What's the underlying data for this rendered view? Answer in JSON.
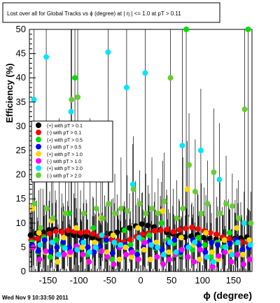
{
  "chart_data": {
    "type": "scatter",
    "title": "Lost over all for Global Tracks vs ϕ (degree) at | η | <= 1.0 at pT > 0.11",
    "xlabel": "ϕ (degree)",
    "ylabel": "Efficiency (%)",
    "xlim": [
      -180,
      180
    ],
    "ylim": [
      0,
      50
    ],
    "x_ticks": [
      -150,
      -100,
      -50,
      0,
      50,
      100,
      150
    ],
    "y_ticks": [
      0,
      5,
      10,
      15,
      20,
      25,
      30,
      35,
      40,
      45,
      50
    ],
    "grid": false,
    "legend_position": "upper-left",
    "timestamp": "Wed Nov  9 10:33:50 2011",
    "series": [
      {
        "name": "(+) with pT > 0.1",
        "color": "#000000",
        "marker": "circle",
        "points": [
          [
            -175,
            7.5
          ],
          [
            -165,
            7.9
          ],
          [
            -155,
            8.2
          ],
          [
            -145,
            8.6
          ],
          [
            -135,
            8.7
          ],
          [
            -125,
            8.3
          ],
          [
            -115,
            7.8
          ],
          [
            -105,
            7.5
          ],
          [
            -95,
            7.4
          ],
          [
            -85,
            7.3
          ],
          [
            -75,
            7.0
          ],
          [
            -65,
            6.8
          ],
          [
            -55,
            7.2
          ],
          [
            -45,
            7.8
          ],
          [
            -35,
            8.1
          ],
          [
            -25,
            8.6
          ],
          [
            -15,
            9.0
          ],
          [
            -5,
            9.4
          ],
          [
            5,
            9.8
          ],
          [
            15,
            9.5
          ],
          [
            25,
            9.2
          ],
          [
            35,
            8.6
          ],
          [
            45,
            8.1
          ],
          [
            55,
            7.8
          ],
          [
            65,
            7.4
          ],
          [
            75,
            7.1
          ],
          [
            85,
            7.3
          ],
          [
            95,
            7.6
          ],
          [
            105,
            7.0
          ],
          [
            115,
            6.8
          ],
          [
            125,
            6.7
          ],
          [
            135,
            6.9
          ],
          [
            145,
            6.6
          ],
          [
            155,
            6.8
          ],
          [
            165,
            6.9
          ],
          [
            175,
            7.1
          ]
        ]
      },
      {
        "name": "(-) with pT > 0.1",
        "color": "#ff0000",
        "marker": "circle",
        "points": [
          [
            -175,
            6.5
          ],
          [
            -165,
            6.8
          ],
          [
            -155,
            7.2
          ],
          [
            -145,
            7.8
          ],
          [
            -135,
            8.3
          ],
          [
            -125,
            8.2
          ],
          [
            -115,
            8.5
          ],
          [
            -105,
            8.3
          ],
          [
            -95,
            8.0
          ],
          [
            -85,
            8.2
          ],
          [
            -75,
            7.8
          ],
          [
            -65,
            7.4
          ],
          [
            -55,
            7.0
          ],
          [
            -45,
            6.6
          ],
          [
            -35,
            6.3
          ],
          [
            -25,
            6.1
          ],
          [
            -15,
            6.6
          ],
          [
            -5,
            7.2
          ],
          [
            5,
            7.7
          ],
          [
            15,
            7.9
          ],
          [
            25,
            8.4
          ],
          [
            35,
            8.5
          ],
          [
            45,
            8.7
          ],
          [
            55,
            8.2
          ],
          [
            65,
            8.6
          ],
          [
            75,
            8.9
          ],
          [
            85,
            9.1
          ],
          [
            95,
            8.8
          ],
          [
            105,
            8.4
          ],
          [
            115,
            8.0
          ],
          [
            125,
            7.7
          ],
          [
            135,
            7.1
          ],
          [
            145,
            6.8
          ],
          [
            155,
            6.5
          ],
          [
            165,
            6.1
          ],
          [
            175,
            6.0
          ]
        ]
      },
      {
        "name": "(+) with pT > 0.5",
        "color": "#00dd00",
        "marker": "circle",
        "points": [
          [
            -175,
            6.0
          ],
          [
            -165,
            4.0
          ],
          [
            -155,
            7.0
          ],
          [
            -145,
            3.0
          ],
          [
            -135,
            6.5
          ],
          [
            -125,
            5.5
          ],
          [
            -115,
            12.0
          ],
          [
            -105,
            40.0
          ],
          [
            -95,
            5.0
          ],
          [
            -85,
            3.5
          ],
          [
            -75,
            9.0
          ],
          [
            -65,
            4.5
          ],
          [
            -55,
            6.2
          ],
          [
            -45,
            2.5
          ],
          [
            -35,
            5.2
          ],
          [
            -25,
            8.5
          ],
          [
            -15,
            5.5
          ],
          [
            -5,
            4.0
          ],
          [
            5,
            6.5
          ],
          [
            15,
            7.5
          ],
          [
            25,
            4.8
          ],
          [
            35,
            10.0
          ],
          [
            45,
            6.5
          ],
          [
            55,
            5.8
          ],
          [
            65,
            3.5
          ],
          [
            75,
            50.0
          ],
          [
            85,
            4.5
          ],
          [
            95,
            7.0
          ],
          [
            105,
            5.5
          ],
          [
            115,
            3.0
          ],
          [
            125,
            6.0
          ],
          [
            135,
            5.0
          ],
          [
            145,
            8.0
          ],
          [
            155,
            6.0
          ],
          [
            165,
            4.2
          ],
          [
            175,
            50.0
          ]
        ]
      },
      {
        "name": "(-) with pT > 0.5",
        "color": "#0000ff",
        "marker": "circle",
        "points": [
          [
            -175,
            5.5
          ],
          [
            -165,
            4.2
          ],
          [
            -155,
            6.5
          ],
          [
            -145,
            4.2
          ],
          [
            -135,
            5.0
          ],
          [
            -125,
            6.0
          ],
          [
            -115,
            5.0
          ],
          [
            -105,
            4.5
          ],
          [
            -95,
            6.2
          ],
          [
            -85,
            5.0
          ],
          [
            -75,
            4.0
          ],
          [
            -65,
            5.2
          ],
          [
            -55,
            6.5
          ],
          [
            -45,
            3.8
          ],
          [
            -35,
            5.0
          ],
          [
            -25,
            5.5
          ],
          [
            -15,
            4.5
          ],
          [
            -5,
            3.5
          ],
          [
            5,
            5.0
          ],
          [
            15,
            6.2
          ],
          [
            25,
            5.0
          ],
          [
            35,
            4.5
          ],
          [
            45,
            5.8
          ],
          [
            55,
            6.5
          ],
          [
            65,
            4.0
          ],
          [
            75,
            5.2
          ],
          [
            85,
            6.5
          ],
          [
            95,
            5.5
          ],
          [
            105,
            4.0
          ],
          [
            115,
            6.0
          ],
          [
            125,
            5.5
          ],
          [
            135,
            4.2
          ],
          [
            145,
            5.8
          ],
          [
            155,
            6.5
          ],
          [
            165,
            4.5
          ],
          [
            175,
            5.0
          ]
        ]
      },
      {
        "name": "(+) with pT > 1.0",
        "color": "#ffd700",
        "marker": "circle",
        "points": [
          [
            -175,
            13.0
          ],
          [
            -165,
            8.0
          ],
          [
            -155,
            4.0
          ],
          [
            -145,
            10.5
          ],
          [
            -135,
            2.0
          ],
          [
            -125,
            7.0
          ],
          [
            -115,
            3.5
          ],
          [
            -105,
            9.0
          ],
          [
            -95,
            5.0
          ],
          [
            -85,
            2.0
          ],
          [
            -75,
            6.0
          ],
          [
            -65,
            11.0
          ],
          [
            -55,
            4.0
          ],
          [
            -45,
            7.5
          ],
          [
            -35,
            2.5
          ],
          [
            -25,
            5.0
          ],
          [
            -15,
            3.0
          ],
          [
            -5,
            9.0
          ],
          [
            5,
            4.5
          ],
          [
            15,
            2.5
          ],
          [
            25,
            6.0
          ],
          [
            35,
            12.5
          ],
          [
            45,
            4.0
          ],
          [
            55,
            3.5
          ],
          [
            65,
            7.0
          ],
          [
            75,
            17.0
          ],
          [
            85,
            5.5
          ],
          [
            95,
            2.5
          ],
          [
            105,
            8.0
          ],
          [
            115,
            4.0
          ],
          [
            125,
            2.5
          ],
          [
            135,
            6.5
          ],
          [
            145,
            4.0
          ],
          [
            155,
            9.0
          ],
          [
            165,
            3.5
          ],
          [
            175,
            6.5
          ]
        ]
      },
      {
        "name": "(-) with pT > 1.0",
        "color": "#ff00ff",
        "marker": "circle",
        "points": [
          [
            -175,
            5.0
          ],
          [
            -165,
            2.5
          ],
          [
            -155,
            4.2
          ],
          [
            -145,
            6.0
          ],
          [
            -135,
            3.5
          ],
          [
            -125,
            3.5
          ],
          [
            -115,
            4.0
          ],
          [
            -105,
            5.2
          ],
          [
            -95,
            3.5
          ],
          [
            -85,
            2.0
          ],
          [
            -75,
            5.0
          ],
          [
            -65,
            4.2
          ],
          [
            -55,
            3.0
          ],
          [
            -45,
            1.5
          ],
          [
            -35,
            5.0
          ],
          [
            -25,
            3.5
          ],
          [
            -15,
            4.0
          ],
          [
            -5,
            2.5
          ],
          [
            5,
            6.0
          ],
          [
            15,
            5.5
          ],
          [
            25,
            3.0
          ],
          [
            35,
            1.5
          ],
          [
            45,
            2.5
          ],
          [
            55,
            3.5
          ],
          [
            65,
            4.5
          ],
          [
            75,
            3.0
          ],
          [
            85,
            2.0
          ],
          [
            95,
            4.5
          ],
          [
            105,
            3.0
          ],
          [
            115,
            1.0
          ],
          [
            125,
            3.2
          ],
          [
            135,
            4.0
          ],
          [
            145,
            2.0
          ],
          [
            155,
            3.5
          ],
          [
            165,
            1.5
          ],
          [
            175,
            2.5
          ]
        ]
      },
      {
        "name": "(+) with pT > 2.0",
        "color": "#00e5ff",
        "marker": "circle",
        "points": [
          [
            -175,
            35.5
          ],
          [
            -165,
            5.5
          ],
          [
            -155,
            44.3
          ],
          [
            -145,
            6.0
          ],
          [
            -135,
            3.5
          ],
          [
            -125,
            4.8
          ],
          [
            -115,
            33.0
          ],
          [
            -105,
            4.5
          ],
          [
            -95,
            6.0
          ],
          [
            -85,
            4.0
          ],
          [
            -75,
            5.0
          ],
          [
            -65,
            7.5
          ],
          [
            -55,
            45.3
          ],
          [
            -45,
            6.0
          ],
          [
            -35,
            5.5
          ],
          [
            -25,
            38.0
          ],
          [
            -15,
            18.0
          ],
          [
            -5,
            7.0
          ],
          [
            5,
            41.0
          ],
          [
            15,
            5.5
          ],
          [
            25,
            5.0
          ],
          [
            35,
            3.5
          ],
          [
            45,
            6.0
          ],
          [
            55,
            4.0
          ],
          [
            65,
            26.0
          ],
          [
            75,
            5.0
          ],
          [
            85,
            6.0
          ],
          [
            95,
            25.0
          ],
          [
            105,
            3.0
          ],
          [
            115,
            2.0
          ],
          [
            125,
            19.0
          ],
          [
            135,
            5.0
          ],
          [
            145,
            3.5
          ],
          [
            155,
            6.0
          ],
          [
            165,
            10.0
          ],
          [
            175,
            5.5
          ]
        ]
      },
      {
        "name": "(-) with pT > 2.0",
        "color": "#66cc33",
        "marker": "circle",
        "points": [
          [
            -175,
            14.0
          ],
          [
            -165,
            9.0
          ],
          [
            -155,
            13.0
          ],
          [
            -145,
            11.0
          ],
          [
            -135,
            19.0
          ],
          [
            -125,
            12.0
          ],
          [
            -115,
            35.5
          ],
          [
            -105,
            36.0
          ],
          [
            -95,
            12.0
          ],
          [
            -85,
            19.0
          ],
          [
            -75,
            13.0
          ],
          [
            -65,
            11.0
          ],
          [
            -55,
            14.0
          ],
          [
            -45,
            12.0
          ],
          [
            -35,
            13.0
          ],
          [
            -25,
            12.5
          ],
          [
            -15,
            17.0
          ],
          [
            -5,
            14.0
          ],
          [
            5,
            12.0
          ],
          [
            15,
            13.0
          ],
          [
            25,
            12.0
          ],
          [
            35,
            14.5
          ],
          [
            45,
            40.0
          ],
          [
            55,
            11.0
          ],
          [
            65,
            13.0
          ],
          [
            75,
            22.0
          ],
          [
            85,
            16.5
          ],
          [
            95,
            12.0
          ],
          [
            105,
            14.0
          ],
          [
            115,
            20.5
          ],
          [
            125,
            12.0
          ],
          [
            135,
            14.0
          ],
          [
            145,
            13.5
          ],
          [
            155,
            11.0
          ],
          [
            165,
            33.5
          ],
          [
            175,
            10.0
          ]
        ]
      }
    ]
  }
}
